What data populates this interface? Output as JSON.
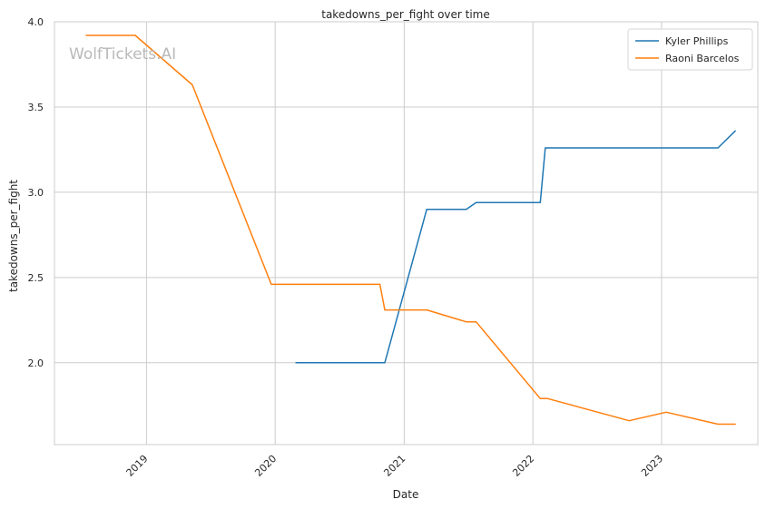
{
  "chart_data": {
    "type": "line",
    "title": "takedowns_per_fight over time",
    "xlabel": "Date",
    "ylabel": "takedowns_per_fight",
    "watermark": "WolfTickets.AI",
    "xlim": [
      "2018-04-15",
      "2023-10-01"
    ],
    "ylim": [
      1.52,
      4.0
    ],
    "xticks": [
      {
        "date": "2019-01-01",
        "label": "2019"
      },
      {
        "date": "2020-01-01",
        "label": "2020"
      },
      {
        "date": "2021-01-01",
        "label": "2021"
      },
      {
        "date": "2022-01-01",
        "label": "2022"
      },
      {
        "date": "2023-01-01",
        "label": "2023"
      }
    ],
    "yticks": [
      {
        "value": 2.0,
        "label": "2.0"
      },
      {
        "value": 2.5,
        "label": "2.5"
      },
      {
        "value": 3.0,
        "label": "3.0"
      },
      {
        "value": 3.5,
        "label": "3.5"
      },
      {
        "value": 4.0,
        "label": "4.0"
      }
    ],
    "grid": true,
    "legend_position": "top-right",
    "series": [
      {
        "name": "Kyler Phillips",
        "color": "#1f77b4",
        "points": [
          {
            "x": "2020-02-29",
            "y": 2.0
          },
          {
            "x": "2020-11-07",
            "y": 2.0
          },
          {
            "x": "2021-03-06",
            "y": 2.9
          },
          {
            "x": "2021-06-26",
            "y": 2.9
          },
          {
            "x": "2021-07-24",
            "y": 2.94
          },
          {
            "x": "2022-01-22",
            "y": 2.94
          },
          {
            "x": "2022-02-05",
            "y": 3.26
          },
          {
            "x": "2023-06-10",
            "y": 3.26
          },
          {
            "x": "2023-07-29",
            "y": 3.36
          }
        ]
      },
      {
        "name": "Raoni Barcelos",
        "color": "#ff7f0e",
        "points": [
          {
            "x": "2018-07-14",
            "y": 3.92
          },
          {
            "x": "2018-11-30",
            "y": 3.92
          },
          {
            "x": "2019-05-11",
            "y": 3.63
          },
          {
            "x": "2019-12-21",
            "y": 2.46
          },
          {
            "x": "2020-10-24",
            "y": 2.46
          },
          {
            "x": "2020-11-07",
            "y": 2.31
          },
          {
            "x": "2021-03-06",
            "y": 2.31
          },
          {
            "x": "2021-06-26",
            "y": 2.24
          },
          {
            "x": "2021-07-24",
            "y": 2.24
          },
          {
            "x": "2022-01-22",
            "y": 1.79
          },
          {
            "x": "2022-02-12",
            "y": 1.79
          },
          {
            "x": "2022-10-01",
            "y": 1.66
          },
          {
            "x": "2023-01-14",
            "y": 1.71
          },
          {
            "x": "2023-06-10",
            "y": 1.64
          },
          {
            "x": "2023-07-29",
            "y": 1.64
          }
        ]
      }
    ]
  }
}
